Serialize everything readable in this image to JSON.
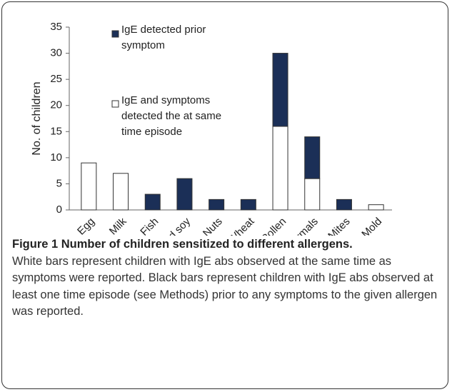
{
  "chart_data": {
    "type": "bar",
    "stacked": true,
    "ylabel": "No. of children",
    "categories": [
      "Egg",
      "Milk",
      "Fish",
      "Peanut and soy",
      "Nuts",
      "Wheat",
      "Pollen",
      "Epidermals",
      "Mites",
      "Mold"
    ],
    "series": [
      {
        "name": "IgE and symptoms detected the at same time episode",
        "color": "#ffffff",
        "values": [
          9,
          7,
          0,
          0,
          0,
          0,
          16,
          6,
          0,
          1
        ]
      },
      {
        "name": "IgE detected prior symptom",
        "color": "#1b2f57",
        "values": [
          0,
          0,
          3,
          6,
          2,
          2,
          14,
          8,
          2,
          0
        ]
      }
    ],
    "ylim": [
      0,
      35
    ],
    "yticks": [
      0,
      5,
      10,
      15,
      20,
      25,
      30,
      35
    ]
  },
  "caption": {
    "title": "Figure 1 Number of children sensitized to different allergens.",
    "text": "White bars represent children with IgE abs observed at the same time as symptoms were reported. Black bars represent children with IgE abs observed at least one time episode (see Methods) prior to any symptoms to the given allergen was reported."
  }
}
